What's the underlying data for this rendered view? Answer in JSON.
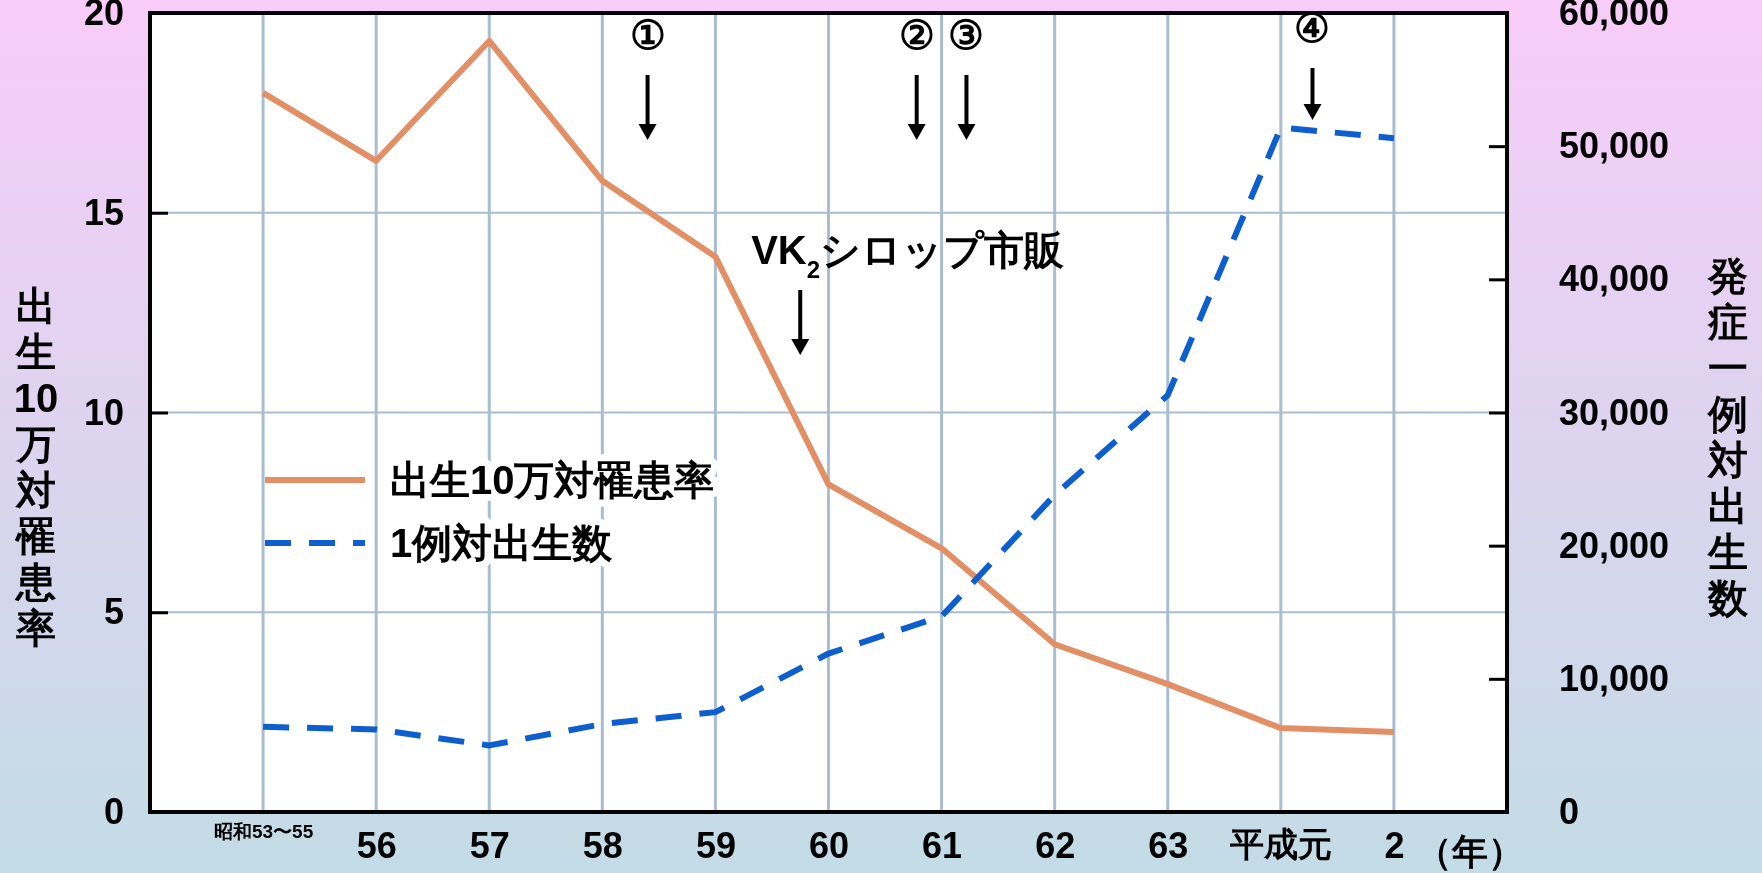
{
  "chart_data": {
    "type": "line",
    "categories": [
      "昭和53〜55",
      "56",
      "57",
      "58",
      "59",
      "60",
      "61",
      "62",
      "63",
      "平成元",
      "2"
    ],
    "xlabel": "（年）",
    "ylabel": "出生10万対罹患率",
    "y2label": "発症一例対出生数",
    "series": [
      {
        "name": "出生10万対罹患率",
        "color": "#e38f66",
        "line_style": "solid",
        "values": [
          18.0,
          16.3,
          19.3,
          15.8,
          13.9,
          8.2,
          6.6,
          4.2,
          3.2,
          2.1,
          2.0
        ]
      },
      {
        "name": "1例対出生数",
        "color": "#0d5fcf",
        "line_style": "dashed",
        "axis": "y2",
        "values": [
          6400,
          6200,
          5000,
          6600,
          7500,
          11900,
          14700,
          23800,
          31300,
          51400,
          50600
        ]
      }
    ],
    "ylim": [
      0,
      20
    ],
    "yticks": [
      0,
      5,
      10,
      15,
      20
    ],
    "y2lim": [
      0,
      60000
    ],
    "y2ticks": [
      {
        "value": 0,
        "label": "0"
      },
      {
        "value": 10000,
        "label": "10,000"
      },
      {
        "value": 20000,
        "label": "20,000"
      },
      {
        "value": 30000,
        "label": "30,000"
      },
      {
        "value": 40000,
        "label": "40,000"
      },
      {
        "value": 50000,
        "label": "50,000"
      },
      {
        "value": 60000,
        "label": "60,000"
      }
    ],
    "grid": true,
    "legend": "left",
    "marker": "none",
    "annotations": [
      "①",
      "②",
      "③",
      "④",
      "VK$_{2}$シロップ市販"
    ]
  }
}
